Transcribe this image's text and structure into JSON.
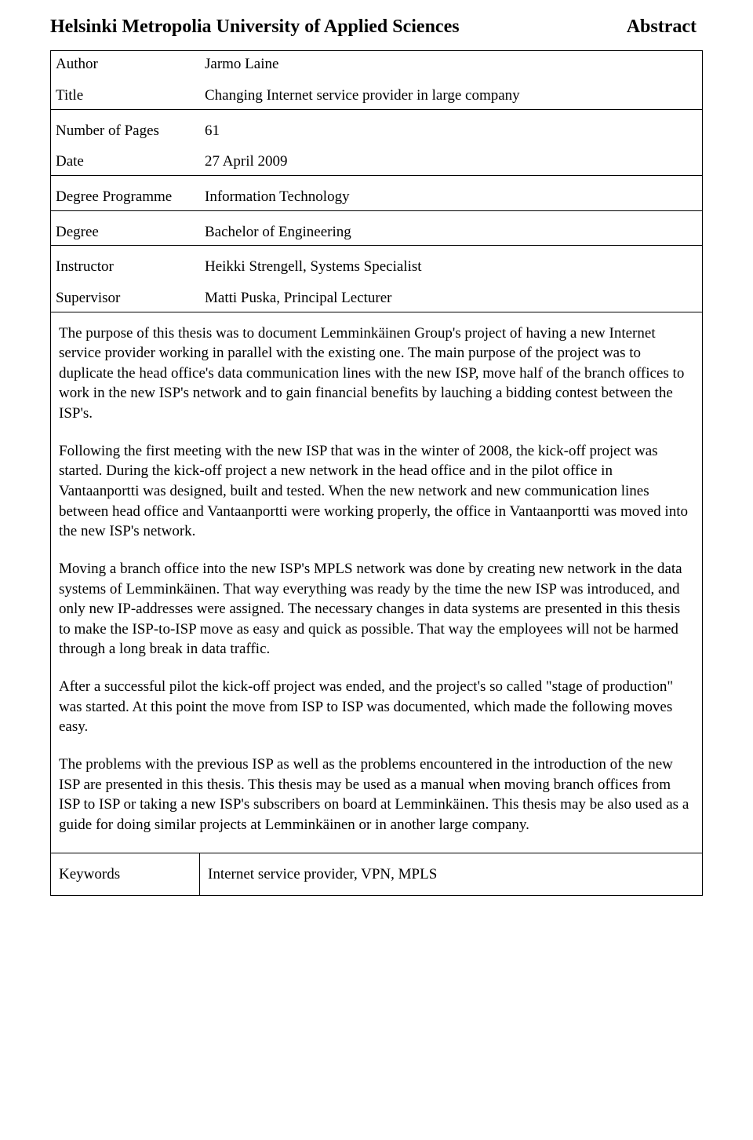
{
  "header": {
    "institution": "Helsinki Metropolia University of Applied Sciences",
    "abstract_label": "Abstract"
  },
  "meta": {
    "author_label": "Author",
    "author_value": "Jarmo Laine",
    "title_label": "Title",
    "title_value": "Changing Internet service provider in large company",
    "pages_label": "Number of Pages",
    "pages_value": "61",
    "date_label": "Date",
    "date_value": "27 April 2009",
    "programme_label": "Degree Programme",
    "programme_value": "Information Technology",
    "degree_label": "Degree",
    "degree_value": "Bachelor of Engineering",
    "instructor_label": "Instructor",
    "instructor_value": "Heikki Strengell, Systems Specialist",
    "supervisor_label": "Supervisor",
    "supervisor_value": "Matti Puska, Principal Lecturer"
  },
  "body": {
    "p1": "The purpose of this thesis was to document Lemminkäinen Group's project of having a new Internet service provider working in parallel with the existing one. The main purpose of the project was to duplicate the head office's data communication lines with the new ISP, move half of the branch offices to work in the new ISP's network and to gain financial benefits by lauching a bidding contest between the ISP's.",
    "p2": "Following the first meeting with the new ISP that was in the winter of 2008, the kick-off project was started. During the kick-off project a new network in the head office and in the pilot office in Vantaanportti was designed, built and tested. When the new network and new communication lines between head office and Vantaanportti were working properly, the office in Vantaanportti was moved into the new ISP's network.",
    "p3": "Moving a branch office into the new ISP's MPLS network was done by creating new network in the data systems of Lemminkäinen. That way everything was ready by the time the new ISP was introduced, and only new IP-addresses were assigned. The necessary changes in data systems are presented in this thesis to make the ISP-to-ISP move as easy and quick as possible. That way the employees will not be harmed through a long break in data traffic.",
    "p4": "After a successful pilot the kick-off project was ended, and the project's so called \"stage of production\" was started. At this point the move from ISP to ISP was documented, which made the following moves easy.",
    "p5": "The problems with the previous ISP as well as the problems encountered in the introduction of the new ISP are presented in this thesis. This thesis may be used as a manual when moving branch offices from ISP to ISP or taking a new ISP's subscribers on board at Lemminkäinen. This thesis may be also used as a guide for doing similar projects at Lemminkäinen or in another large company."
  },
  "keywords": {
    "label": "Keywords",
    "value": "Internet service provider, VPN, MPLS"
  }
}
